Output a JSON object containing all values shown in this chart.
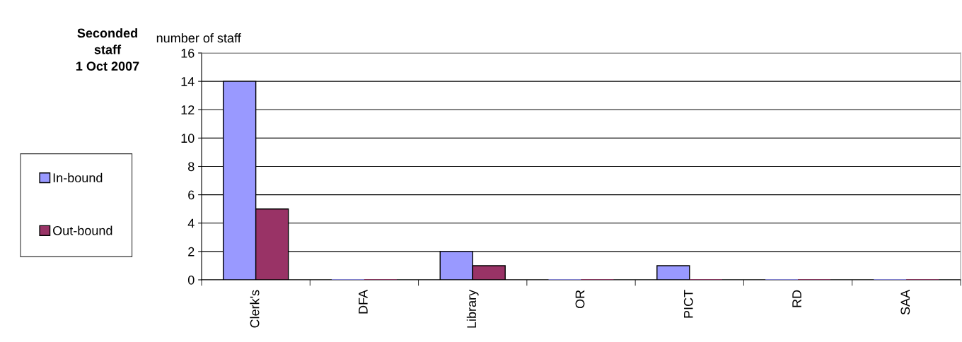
{
  "chart_data": {
    "type": "bar",
    "title": "Seconded\nstaff\n1 Oct 2007",
    "ylabel": "number of staff",
    "categories": [
      "Clerk's",
      "DFA",
      "Library",
      "OR",
      "PICT",
      "RD",
      "SAA"
    ],
    "series": [
      {
        "name": "In-bound",
        "color": "#9999ff",
        "values": [
          14,
          0,
          2,
          0,
          1,
          0,
          0
        ]
      },
      {
        "name": "Out-bound",
        "color": "#993366",
        "values": [
          5,
          0,
          1,
          0,
          0,
          0,
          0
        ]
      }
    ],
    "ylim": [
      0,
      16
    ],
    "yticks": [
      0,
      2,
      4,
      6,
      8,
      10,
      12,
      14,
      16
    ],
    "grid": "y",
    "legend": "left"
  }
}
